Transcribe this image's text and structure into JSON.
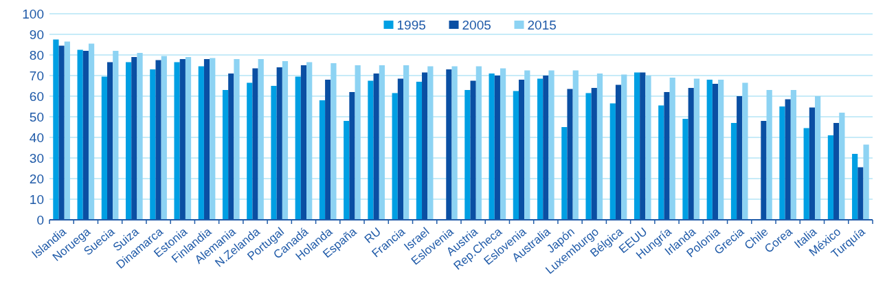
{
  "chart_data": {
    "type": "bar",
    "categories": [
      "Islandia",
      "Noruega",
      "Suecia",
      "Suiza",
      "Dinamarca",
      "Estonia",
      "Finlandia",
      "Alemania",
      "N.Zelanda",
      "Portugal",
      "Canadá",
      "Holanda",
      "España",
      "RU",
      "Francia",
      "Israel",
      "Eslovenia",
      "Austria",
      "Rep.Checa",
      "Eslovenia",
      "Australia",
      "Japón",
      "Luxemburgo",
      "Bélgica",
      "EEUU",
      "Hungría",
      "Irlanda",
      "Polonia",
      "Grecia",
      "Chile",
      "Corea",
      "Italia",
      "México",
      "Turquía"
    ],
    "series": [
      {
        "name": "1995",
        "color": "#009fe3",
        "values": [
          87.5,
          82.5,
          69.5,
          76.5,
          73,
          76.5,
          74.5,
          63,
          66.5,
          65,
          69.5,
          58,
          48,
          67.5,
          61.5,
          67,
          null,
          63,
          71,
          62.5,
          68.5,
          45,
          61.5,
          56.5,
          71.5,
          55.5,
          49,
          68,
          47,
          null,
          55,
          44.5,
          41,
          32
        ]
      },
      {
        "name": "2005",
        "color": "#0a4fa3",
        "values": [
          84.5,
          82,
          76.5,
          79,
          77.5,
          78,
          78,
          71,
          73.5,
          74,
          75,
          68,
          62,
          71,
          68.5,
          71.5,
          73,
          67.5,
          70,
          68,
          70,
          63.5,
          64,
          65.5,
          71.5,
          62,
          64,
          66,
          60,
          48,
          58.5,
          54.5,
          47,
          25.5
        ]
      },
      {
        "name": "2015",
        "color": "#8dd3f3",
        "values": [
          86.5,
          85.5,
          82,
          81,
          79.5,
          79,
          78.5,
          78,
          78,
          77,
          76.5,
          76,
          75,
          75,
          75,
          74.5,
          74.5,
          74.5,
          73.5,
          72.5,
          72.5,
          72.5,
          71,
          70.5,
          70,
          69,
          68.5,
          68,
          66.5,
          63,
          63,
          60,
          52,
          36.5
        ]
      }
    ],
    "ylim": [
      0,
      100
    ],
    "yticks": [
      0,
      10,
      20,
      30,
      40,
      50,
      60,
      70,
      80,
      90,
      100
    ],
    "grid": "y",
    "legend": "top"
  }
}
